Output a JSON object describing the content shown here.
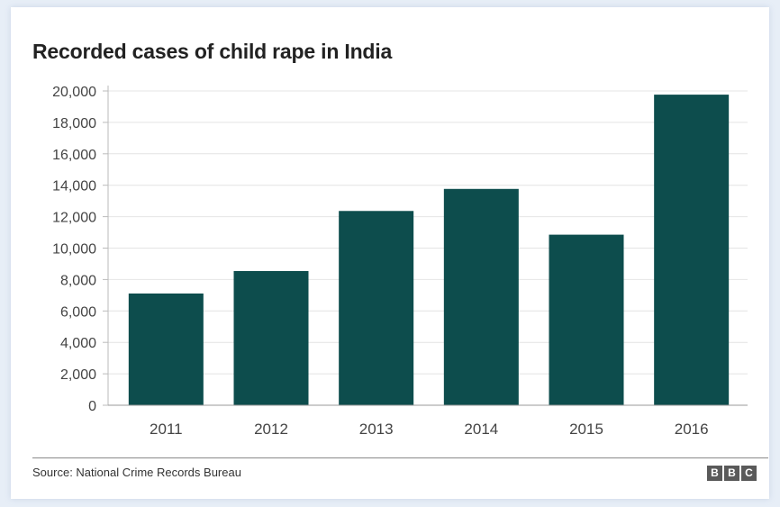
{
  "chart_data": {
    "type": "bar",
    "title": "Recorded cases of child rape in India",
    "categories": [
      "2011",
      "2012",
      "2013",
      "2014",
      "2015",
      "2016"
    ],
    "values": [
      7112,
      8541,
      12363,
      13766,
      10854,
      19765
    ],
    "ylim": [
      0,
      20000
    ],
    "yticks": [
      "0",
      "2,000",
      "4,000",
      "6,000",
      "8,000",
      "10,000",
      "12,000",
      "14,000",
      "16,000",
      "18,000",
      "20,000"
    ],
    "grid": true,
    "bar_color": "#0d4d4d"
  },
  "footer": {
    "source": "Source: National Crime Records Bureau",
    "logo_letters": [
      "B",
      "B",
      "C"
    ]
  }
}
